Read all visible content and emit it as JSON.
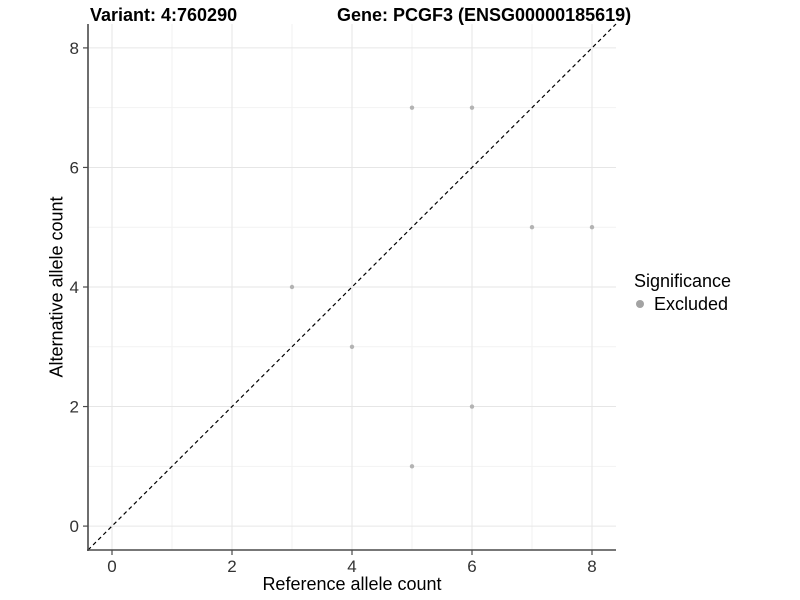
{
  "titles": {
    "left": "Variant: 4:760290",
    "right": "Gene: PCGF3 (ENSG00000185619)"
  },
  "legend": {
    "title": "Significance",
    "items": [
      {
        "label": "Excluded",
        "color": "#a3a3a3",
        "icon": "point-icon"
      }
    ],
    "position": "right"
  },
  "chart_data": {
    "type": "scatter",
    "title_left": "Variant: 4:760290",
    "title_right": "Gene: PCGF3 (ENSG00000185619)",
    "xlabel": "Reference allele count",
    "ylabel": "Alternative allele count",
    "xlim": [
      -0.4,
      8.4
    ],
    "ylim": [
      -0.4,
      8.4
    ],
    "x_ticks": [
      0,
      2,
      4,
      6,
      8
    ],
    "y_ticks": [
      0,
      2,
      4,
      6,
      8
    ],
    "x_minor_ticks": [
      1,
      3,
      5,
      7
    ],
    "y_minor_ticks": [
      1,
      3,
      5,
      7
    ],
    "grid": true,
    "legend_position": "right",
    "series": [
      {
        "name": "Excluded",
        "color": "#b3b3b3",
        "points": [
          [
            3,
            4
          ],
          [
            4,
            3
          ],
          [
            5,
            1
          ],
          [
            5,
            7
          ],
          [
            6,
            2
          ],
          [
            6,
            7
          ],
          [
            7,
            5
          ],
          [
            8,
            5
          ]
        ]
      }
    ],
    "identity_line": {
      "style": "dashed",
      "color": "#000000",
      "from": [
        -0.4,
        -0.4
      ],
      "to": [
        8.4,
        8.4
      ]
    }
  },
  "colors": {
    "major_grid": "#e6e6e6",
    "minor_grid": "#f2f2f2",
    "axis_line": "#4a4a4a",
    "tick_label": "#333333",
    "point": "#b3b3b3",
    "legend_dot": "#a3a3a3"
  }
}
